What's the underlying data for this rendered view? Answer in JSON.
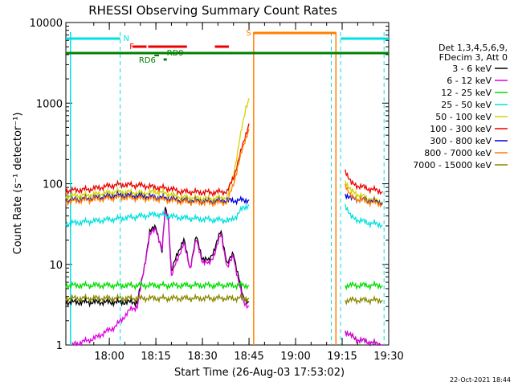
{
  "chart_data": {
    "type": "line",
    "title": "RHESSI Observing Summary Count Rates",
    "xlabel": "Start Time (26-Aug-03 17:53:02)",
    "ylabel": "Count Rate (s⁻¹ detector⁻¹)",
    "y_scale": "log",
    "ylim": [
      1,
      10000
    ],
    "xlim_minutes": [
      -7,
      97
    ],
    "x_ticks": [
      {
        "label": "18:00",
        "min": 7
      },
      {
        "label": "18:15",
        "min": 22
      },
      {
        "label": "18:30",
        "min": 37
      },
      {
        "label": "18:45",
        "min": 52
      },
      {
        "label": "19:00",
        "min": 67
      },
      {
        "label": "19:15",
        "min": 82
      },
      {
        "label": "19:30",
        "min": 97
      }
    ],
    "y_ticks": [
      {
        "label": "1",
        "value": 1
      },
      {
        "label": "10",
        "value": 10
      },
      {
        "label": "100",
        "value": 100
      },
      {
        "label": "1000",
        "value": 1000
      },
      {
        "label": "10000",
        "value": 10000
      }
    ],
    "legend_header": [
      "Det 1,3,4,5,6,9,",
      "FDecim 3, Att 0"
    ],
    "legend_placement": "right",
    "series": [
      {
        "name": "3 - 6 keV",
        "color": "#000000",
        "points": [
          [
            -7,
            3.4
          ],
          [
            0,
            3.4
          ],
          [
            10,
            3.4
          ],
          [
            16,
            3.4
          ],
          [
            18,
            8
          ],
          [
            20,
            25
          ],
          [
            22,
            30
          ],
          [
            24,
            14
          ],
          [
            25,
            50
          ],
          [
            26,
            40
          ],
          [
            27,
            8
          ],
          [
            29,
            14
          ],
          [
            31,
            20
          ],
          [
            33,
            9
          ],
          [
            35,
            22
          ],
          [
            37,
            12
          ],
          [
            39,
            11
          ],
          [
            41,
            16
          ],
          [
            43,
            26
          ],
          [
            45,
            10
          ],
          [
            47,
            14
          ],
          [
            48,
            9
          ],
          [
            50,
            4
          ],
          [
            52,
            3.4
          ]
        ],
        "after": [
          [
            83,
            1.5
          ],
          [
            86,
            1.2
          ],
          [
            90,
            1.1
          ],
          [
            95,
            1.0
          ]
        ]
      },
      {
        "name": "6 - 12 keV",
        "color": "#e000e0",
        "points": [
          [
            -5,
            1.0
          ],
          [
            2,
            1.2
          ],
          [
            9,
            1.7
          ],
          [
            14,
            2.8
          ],
          [
            16,
            3.0
          ],
          [
            18,
            8
          ],
          [
            20,
            23
          ],
          [
            22,
            28
          ],
          [
            24,
            15
          ],
          [
            25,
            45
          ],
          [
            26,
            38
          ],
          [
            27,
            7
          ],
          [
            29,
            12
          ],
          [
            31,
            18
          ],
          [
            33,
            9
          ],
          [
            35,
            20
          ],
          [
            37,
            11
          ],
          [
            39,
            10
          ],
          [
            41,
            14
          ],
          [
            43,
            24
          ],
          [
            45,
            9
          ],
          [
            47,
            13
          ],
          [
            48,
            8
          ],
          [
            50,
            3.5
          ],
          [
            52,
            3.0
          ]
        ],
        "after": [
          [
            83,
            1.5
          ],
          [
            86,
            1.2
          ],
          [
            90,
            1.1
          ],
          [
            95,
            1.0
          ]
        ]
      },
      {
        "name": "12 - 25 keV",
        "color": "#00dd00",
        "points": [
          [
            -7,
            5.5
          ],
          [
            0,
            5.5
          ],
          [
            10,
            5.5
          ],
          [
            20,
            5.5
          ],
          [
            30,
            5.5
          ],
          [
            40,
            5.5
          ],
          [
            50,
            5.5
          ],
          [
            52,
            5.5
          ]
        ],
        "after": [
          [
            83,
            5.5
          ],
          [
            90,
            5.5
          ],
          [
            95,
            5.5
          ]
        ]
      },
      {
        "name": "25 - 50 keV",
        "color": "#00e0e0",
        "points": [
          [
            -7,
            32
          ],
          [
            0,
            34
          ],
          [
            10,
            37
          ],
          [
            18,
            40
          ],
          [
            22,
            42
          ],
          [
            26,
            40
          ],
          [
            30,
            38
          ],
          [
            40,
            36
          ],
          [
            46,
            35
          ],
          [
            48,
            40
          ],
          [
            50,
            50
          ],
          [
            52,
            55
          ]
        ],
        "after": [
          [
            83,
            56
          ],
          [
            85,
            38
          ],
          [
            90,
            33
          ],
          [
            95,
            31
          ]
        ]
      },
      {
        "name": "50 - 100 keV",
        "color": "#d4d400",
        "points": [
          [
            -7,
            70
          ],
          [
            0,
            72
          ],
          [
            10,
            80
          ],
          [
            18,
            76
          ],
          [
            22,
            80
          ],
          [
            26,
            75
          ],
          [
            30,
            68
          ],
          [
            40,
            65
          ],
          [
            45,
            68
          ],
          [
            47,
            130
          ],
          [
            49,
            350
          ],
          [
            51,
            900
          ],
          [
            52,
            1150
          ]
        ],
        "after": [
          [
            83,
            110
          ],
          [
            85,
            80
          ],
          [
            90,
            66
          ],
          [
            95,
            60
          ]
        ]
      },
      {
        "name": "100 - 300 keV",
        "color": "#ee0000",
        "points": [
          [
            -7,
            82
          ],
          [
            0,
            85
          ],
          [
            10,
            98
          ],
          [
            18,
            95
          ],
          [
            22,
            90
          ],
          [
            26,
            88
          ],
          [
            30,
            80
          ],
          [
            40,
            78
          ],
          [
            45,
            80
          ],
          [
            47,
            120
          ],
          [
            49,
            220
          ],
          [
            51,
            420
          ],
          [
            52,
            560
          ]
        ],
        "after": [
          [
            83,
            150
          ],
          [
            85,
            100
          ],
          [
            90,
            88
          ],
          [
            95,
            80
          ]
        ]
      },
      {
        "name": "300 - 800 keV",
        "color": "#0000dd",
        "points": [
          [
            -7,
            62
          ],
          [
            0,
            65
          ],
          [
            10,
            72
          ],
          [
            18,
            70
          ],
          [
            22,
            68
          ],
          [
            26,
            66
          ],
          [
            30,
            62
          ],
          [
            40,
            60
          ],
          [
            45,
            62
          ],
          [
            47,
            62
          ],
          [
            52,
            63
          ]
        ],
        "after": [
          [
            83,
            75
          ],
          [
            85,
            66
          ],
          [
            90,
            62
          ],
          [
            95,
            58
          ]
        ]
      },
      {
        "name": "800 - 7000 keV",
        "color": "#ff8000",
        "points": [
          [
            -7,
            60
          ],
          [
            0,
            63
          ],
          [
            10,
            68
          ],
          [
            18,
            66
          ],
          [
            22,
            65
          ],
          [
            26,
            63
          ],
          [
            30,
            60
          ],
          [
            40,
            58
          ],
          [
            45,
            59
          ],
          [
            47,
            100
          ],
          [
            49,
            200
          ],
          [
            51,
            380
          ],
          [
            52,
            480
          ]
        ],
        "after": [
          [
            83,
            100
          ],
          [
            85,
            68
          ],
          [
            90,
            60
          ],
          [
            95,
            56
          ]
        ]
      },
      {
        "name": "7000 - 15000 keV",
        "color": "#888800",
        "points": [
          [
            -7,
            3.8
          ],
          [
            0,
            3.8
          ],
          [
            10,
            3.8
          ],
          [
            20,
            3.8
          ],
          [
            30,
            3.8
          ],
          [
            40,
            3.8
          ],
          [
            50,
            3.8
          ],
          [
            52,
            3.8
          ]
        ],
        "after": [
          [
            83,
            3.6
          ],
          [
            90,
            3.6
          ],
          [
            95,
            3.6
          ]
        ]
      }
    ],
    "flags": [
      {
        "label": "N",
        "color": "#00e0e0"
      },
      {
        "label": "F",
        "color": "#ee0000"
      },
      {
        "label": "RD9",
        "color": "#008000"
      },
      {
        "label": "RD6",
        "color": "#008000"
      },
      {
        "label": "S",
        "color": "#ff8000"
      }
    ],
    "timestamp": "22-Oct-2021 18:44"
  }
}
